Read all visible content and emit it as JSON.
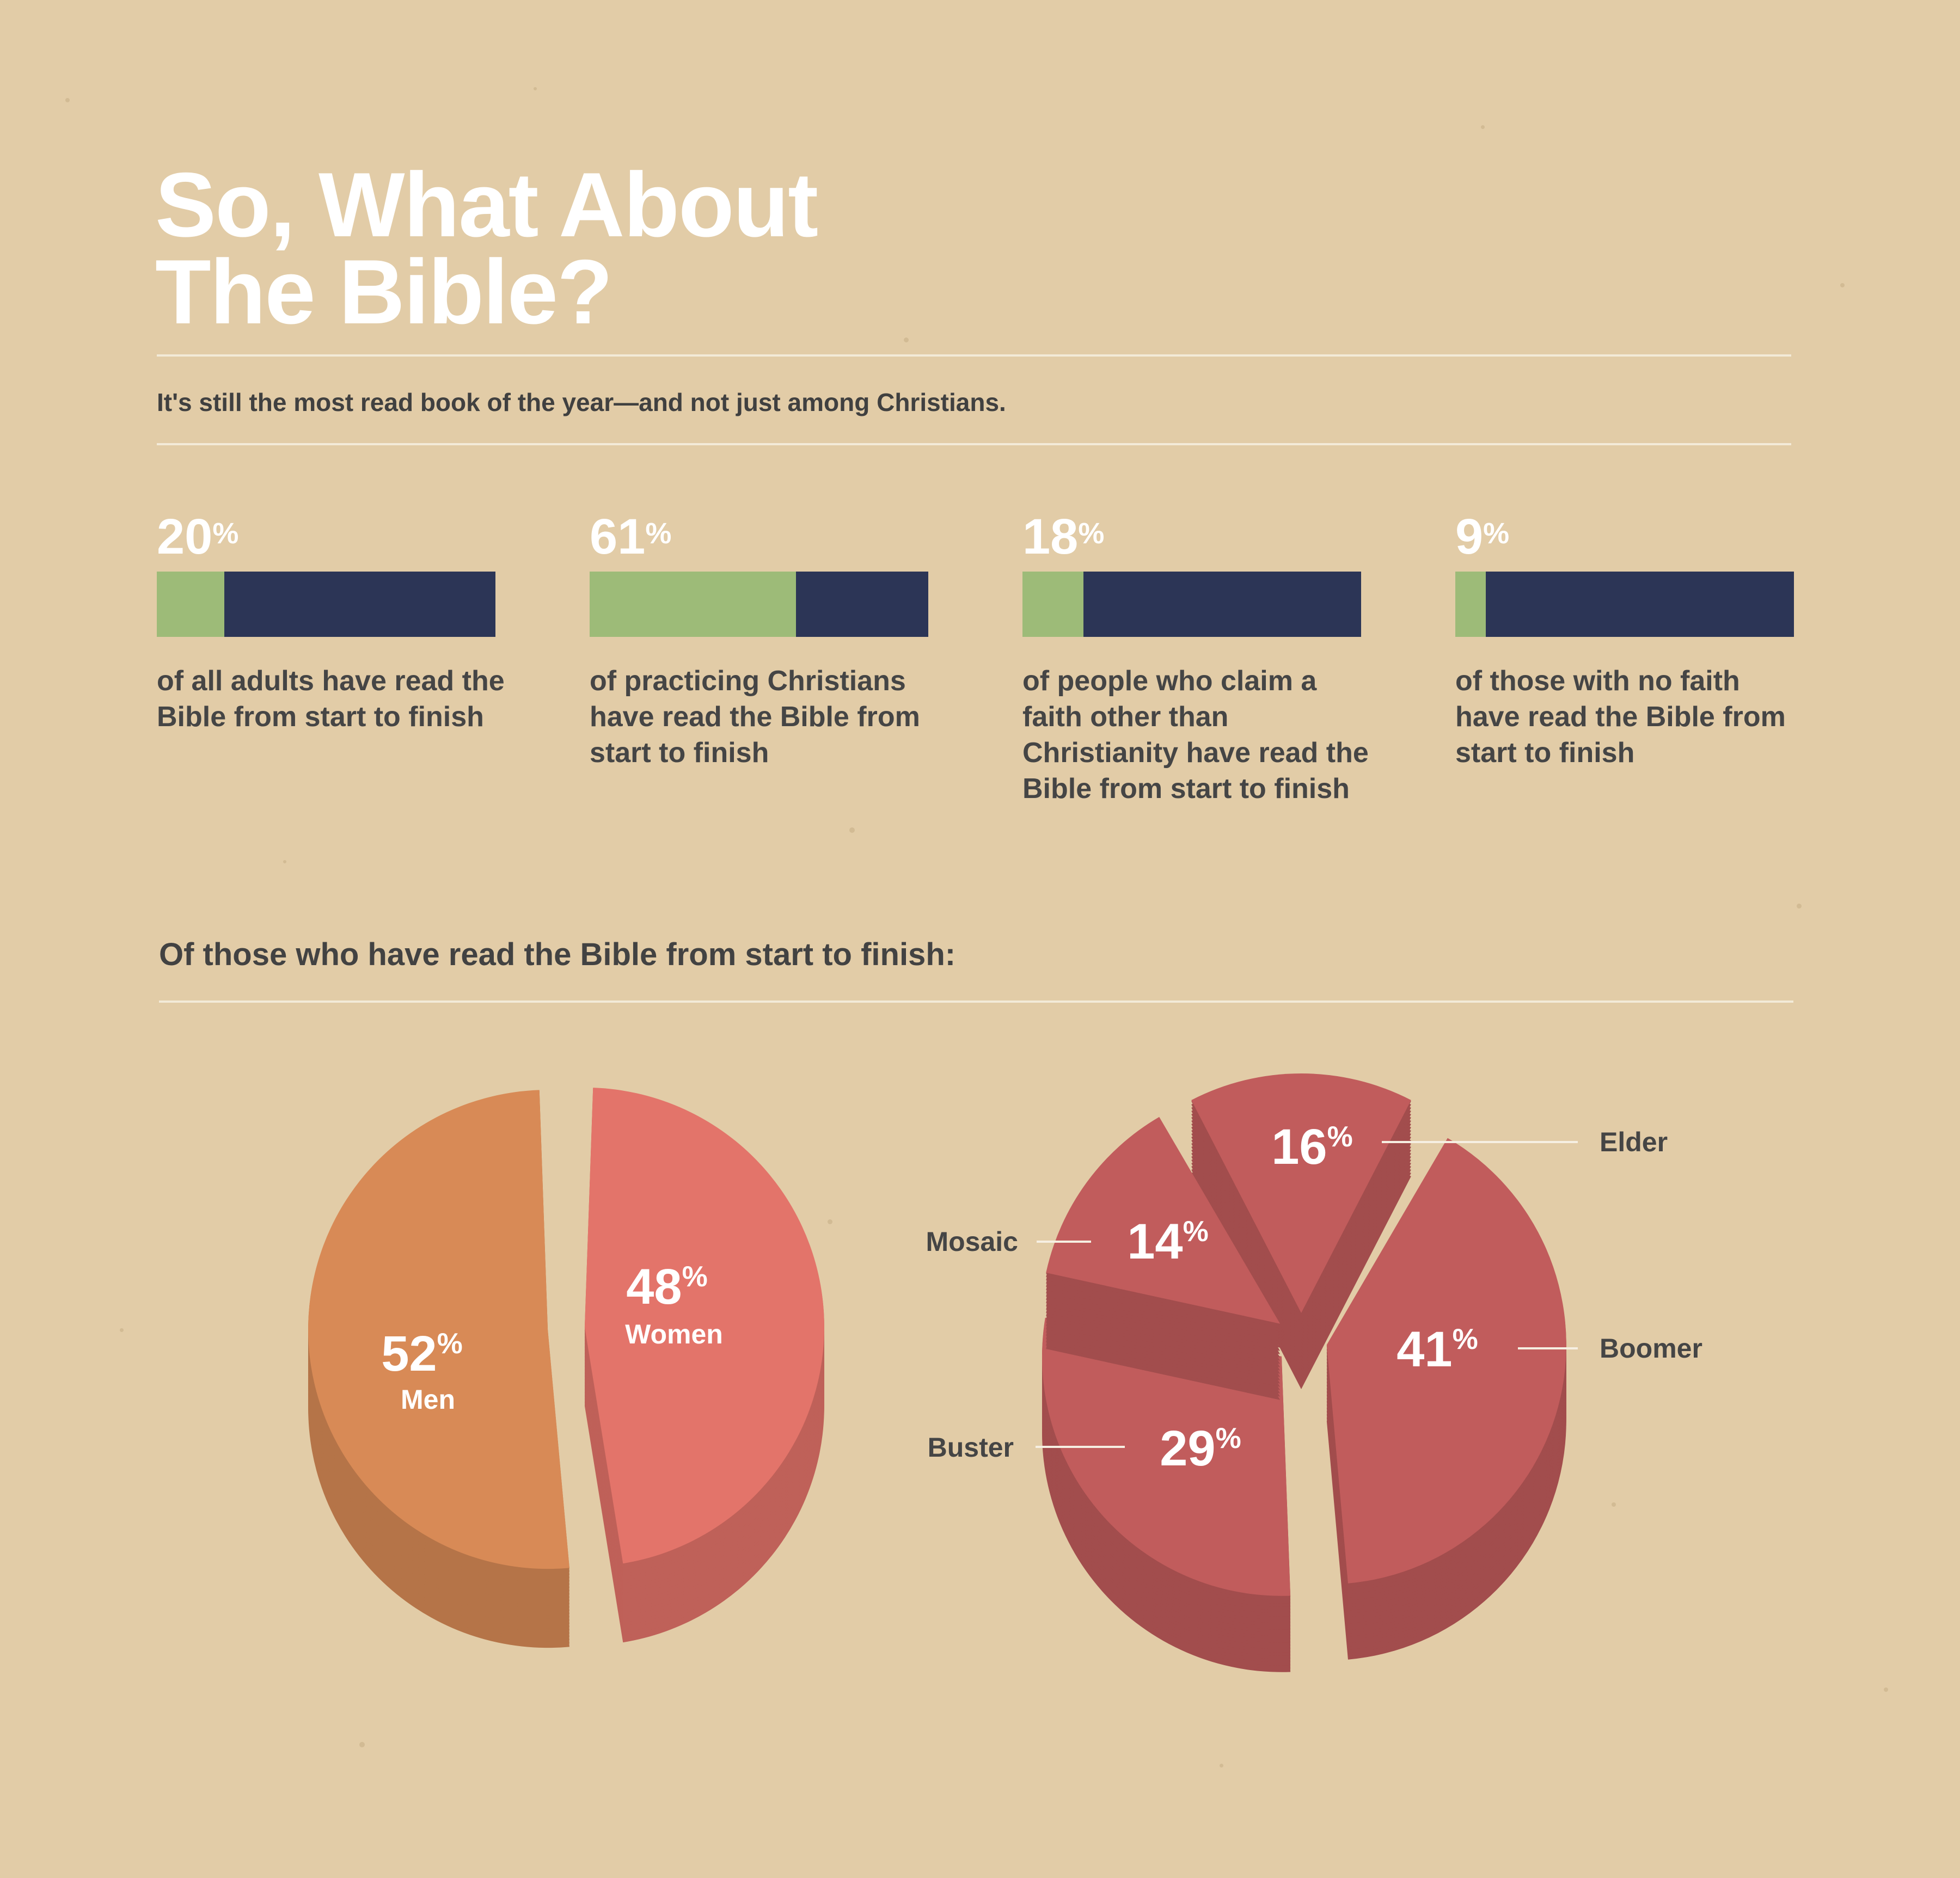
{
  "title": {
    "line1": "So, What About",
    "line2": "The Bible?"
  },
  "subtitle": "It's still the most read book of the year—and not just among Christians.",
  "stats": [
    {
      "value": "20",
      "unit": "%",
      "fraction": 0.2,
      "description": "of all adults have read the Bible from start to finish"
    },
    {
      "value": "61",
      "unit": "%",
      "fraction": 0.61,
      "description": "of practicing Christians have read the Bible from start to finish"
    },
    {
      "value": "18",
      "unit": "%",
      "fraction": 0.18,
      "description": "of people who claim a faith other than Christianity have read the Bible from start to finish"
    },
    {
      "value": "9",
      "unit": "%",
      "fraction": 0.09,
      "description": "of those with no faith have read the Bible from start to finish"
    }
  ],
  "section_heading": "Of those who have read the Bible from start to finish:",
  "colors": {
    "bar_fill": "#9dbb78",
    "bar_track": "#2c3556",
    "men": "#d88a56",
    "women": "#e3746a",
    "generations": "#c15c5c"
  },
  "chart_data": [
    {
      "type": "bar",
      "categories": [
        "of all adults",
        "of practicing Christians",
        "of people who claim a faith other than Christianity",
        "of those with no faith"
      ],
      "values": [
        20,
        61,
        18,
        9
      ],
      "ylim": [
        0,
        100
      ]
    },
    {
      "type": "pie",
      "slices": [
        {
          "label": "Men",
          "value": 52
        },
        {
          "label": "Women",
          "value": 48
        }
      ]
    },
    {
      "type": "pie",
      "slices": [
        {
          "label": "Elder",
          "value": 16
        },
        {
          "label": "Boomer",
          "value": 41
        },
        {
          "label": "Buster",
          "value": 29
        },
        {
          "label": "Mosaic",
          "value": 14
        }
      ]
    }
  ]
}
